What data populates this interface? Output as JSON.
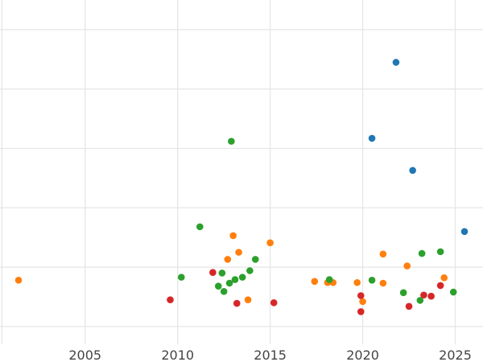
{
  "chart_data": {
    "type": "scatter",
    "title": "",
    "xlabel": "",
    "ylabel": "",
    "xlim": [
      2000.4,
      2026.5
    ],
    "ylim": [
      -0.3,
      5.5
    ],
    "x_ticks": [
      2005,
      2010,
      2015,
      2020,
      2025
    ],
    "x_tick_labels": [
      "2005",
      "2010",
      "2015",
      "2020",
      "2025"
    ],
    "y_gridlines": [
      0,
      1,
      2,
      3,
      4,
      5
    ],
    "grid": true,
    "series": [
      {
        "color": "#1f77b4",
        "points": [
          {
            "x": 2021.8,
            "y": 4.45
          },
          {
            "x": 2020.5,
            "y": 3.17
          },
          {
            "x": 2022.7,
            "y": 2.63
          },
          {
            "x": 2025.5,
            "y": 1.6
          }
        ]
      },
      {
        "color": "#ff7f0e",
        "points": [
          {
            "x": 2001.4,
            "y": 0.78
          },
          {
            "x": 2012.7,
            "y": 1.13
          },
          {
            "x": 2013.0,
            "y": 1.53
          },
          {
            "x": 2013.3,
            "y": 1.25
          },
          {
            "x": 2013.8,
            "y": 0.45
          },
          {
            "x": 2015.0,
            "y": 1.41
          },
          {
            "x": 2017.4,
            "y": 0.76
          },
          {
            "x": 2018.1,
            "y": 0.74
          },
          {
            "x": 2018.4,
            "y": 0.74
          },
          {
            "x": 2019.7,
            "y": 0.74
          },
          {
            "x": 2020.0,
            "y": 0.42
          },
          {
            "x": 2021.1,
            "y": 1.22
          },
          {
            "x": 2021.1,
            "y": 0.73
          },
          {
            "x": 2022.4,
            "y": 1.02
          },
          {
            "x": 2024.4,
            "y": 0.82
          }
        ]
      },
      {
        "color": "#2ca02c",
        "points": [
          {
            "x": 2010.2,
            "y": 0.83
          },
          {
            "x": 2011.2,
            "y": 1.68
          },
          {
            "x": 2012.2,
            "y": 0.68
          },
          {
            "x": 2012.4,
            "y": 0.9
          },
          {
            "x": 2012.5,
            "y": 0.59
          },
          {
            "x": 2012.8,
            "y": 0.73
          },
          {
            "x": 2012.9,
            "y": 3.12
          },
          {
            "x": 2013.1,
            "y": 0.79
          },
          {
            "x": 2013.5,
            "y": 0.83
          },
          {
            "x": 2013.9,
            "y": 0.94
          },
          {
            "x": 2014.2,
            "y": 1.13
          },
          {
            "x": 2018.2,
            "y": 0.79
          },
          {
            "x": 2020.5,
            "y": 0.78
          },
          {
            "x": 2022.2,
            "y": 0.57
          },
          {
            "x": 2023.1,
            "y": 0.44
          },
          {
            "x": 2023.2,
            "y": 1.23
          },
          {
            "x": 2024.2,
            "y": 1.26
          },
          {
            "x": 2024.9,
            "y": 0.58
          }
        ]
      },
      {
        "color": "#d62728",
        "points": [
          {
            "x": 2009.6,
            "y": 0.45
          },
          {
            "x": 2011.9,
            "y": 0.91
          },
          {
            "x": 2013.2,
            "y": 0.39
          },
          {
            "x": 2015.2,
            "y": 0.4
          },
          {
            "x": 2019.9,
            "y": 0.52
          },
          {
            "x": 2019.9,
            "y": 0.25
          },
          {
            "x": 2022.5,
            "y": 0.34
          },
          {
            "x": 2023.3,
            "y": 0.53
          },
          {
            "x": 2023.7,
            "y": 0.51
          },
          {
            "x": 2024.2,
            "y": 0.69
          }
        ]
      }
    ]
  }
}
